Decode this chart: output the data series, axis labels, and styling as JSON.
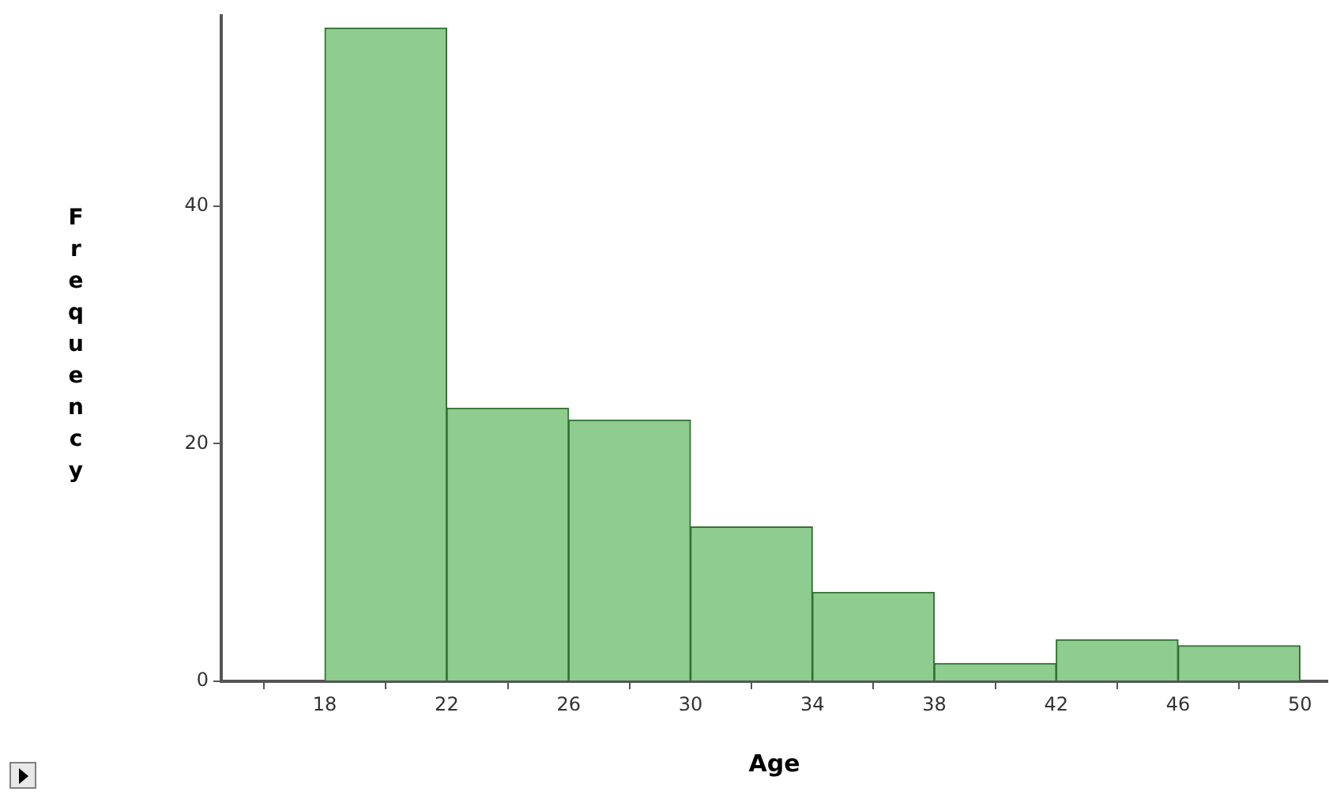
{
  "chart_data": {
    "type": "histogram",
    "xlabel": "Age",
    "ylabel": "Frequency",
    "bins": [
      18,
      22,
      26,
      30,
      34,
      38,
      42,
      46,
      50
    ],
    "values": [
      55,
      23,
      22,
      13,
      7.5,
      1.5,
      3.5,
      3
    ],
    "color": "#8fcc8f",
    "xlim": [
      14.6,
      50.9
    ],
    "xticks": [
      18,
      22,
      26,
      30,
      34,
      38,
      42,
      46,
      50
    ],
    "ylim": [
      0,
      56
    ],
    "yticks": [
      0,
      20,
      40
    ],
    "grid": false,
    "legend": false
  }
}
